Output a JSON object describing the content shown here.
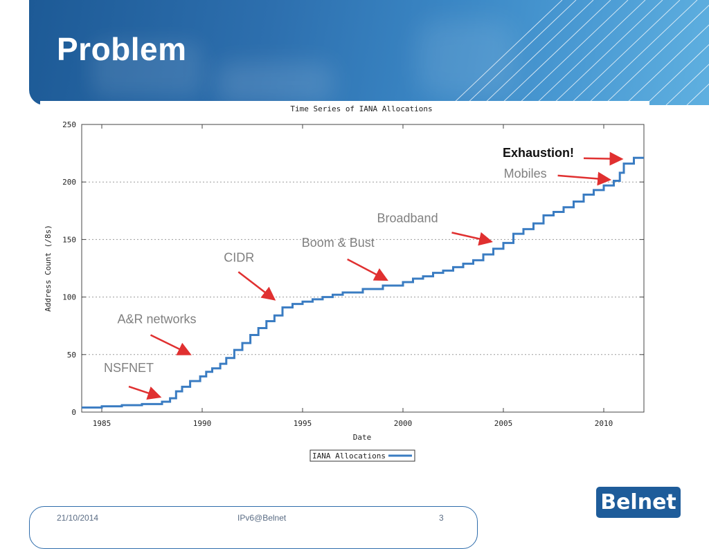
{
  "slide": {
    "title": "Problem",
    "footer_date": "21/10/2014",
    "footer_center": "IPv6@Belnet",
    "page_number": "3",
    "logo_text": "Belnet",
    "colors": {
      "banner": "#2d6fae",
      "series": "#3a7cc2",
      "arrow": "#e03030",
      "logo_bg": "#1e5c9a"
    }
  },
  "chart_data": {
    "type": "line",
    "title": "Time Series of IANA Allocations",
    "xlabel": "Date",
    "ylabel": "Address Count (/8s)",
    "xlim": [
      1984,
      2012
    ],
    "ylim": [
      0,
      250
    ],
    "x_ticks": [
      1985,
      1990,
      1995,
      2000,
      2005,
      2010
    ],
    "y_ticks": [
      0,
      50,
      100,
      150,
      200,
      250
    ],
    "grid": "horizontal-dotted",
    "legend_position": "bottom-center",
    "series": [
      {
        "name": "IANA Allocations",
        "x": [
          1984.0,
          1985.0,
          1986.0,
          1987.0,
          1988.0,
          1988.4,
          1988.7,
          1989.0,
          1989.4,
          1989.9,
          1990.2,
          1990.5,
          1990.9,
          1991.2,
          1991.6,
          1992.0,
          1992.4,
          1992.8,
          1993.2,
          1993.6,
          1994.0,
          1994.5,
          1995.0,
          1995.5,
          1996.0,
          1996.5,
          1997.0,
          1998.0,
          1999.0,
          2000.0,
          2000.5,
          2001.0,
          2001.5,
          2002.0,
          2002.5,
          2003.0,
          2003.5,
          2004.0,
          2004.5,
          2005.0,
          2005.5,
          2006.0,
          2006.5,
          2007.0,
          2007.5,
          2008.0,
          2008.5,
          2009.0,
          2009.5,
          2010.0,
          2010.5,
          2010.8,
          2011.0,
          2011.5,
          2012.0
        ],
        "y": [
          4,
          5,
          6,
          7,
          9,
          12,
          18,
          22,
          27,
          31,
          35,
          38,
          42,
          47,
          54,
          60,
          67,
          73,
          79,
          84,
          91,
          94,
          96,
          98,
          100,
          102,
          104,
          107,
          110,
          113,
          116,
          118,
          121,
          123,
          126,
          129,
          132,
          137,
          142,
          147,
          155,
          159,
          164,
          171,
          174,
          178,
          183,
          189,
          193,
          197,
          201,
          208,
          216,
          221,
          221
        ]
      }
    ],
    "annotations": [
      {
        "text": "NSFNET",
        "x": 1988.0,
        "y": 12
      },
      {
        "text": "A&R networks",
        "x": 1989.5,
        "y": 49
      },
      {
        "text": "CIDR",
        "x": 1993.7,
        "y": 96
      },
      {
        "text": "Boom & Bust",
        "x": 1999.3,
        "y": 113
      },
      {
        "text": "Broadband",
        "x": 2004.5,
        "y": 147
      },
      {
        "text": "Mobiles",
        "x": 2010.4,
        "y": 202
      },
      {
        "text": "Exhaustion!",
        "x": 2011.0,
        "y": 220
      }
    ]
  }
}
